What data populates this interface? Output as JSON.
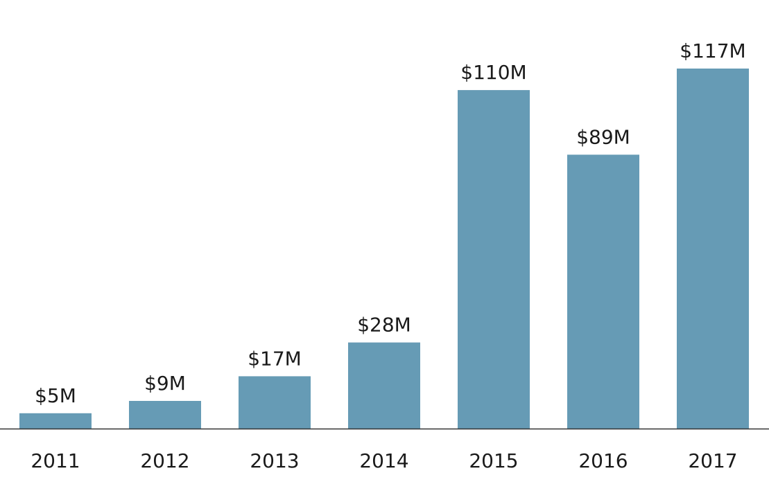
{
  "chart_data": {
    "type": "bar",
    "title": "",
    "xlabel": "",
    "ylabel": "",
    "categories": [
      "2011",
      "2012",
      "2013",
      "2014",
      "2015",
      "2016",
      "2017"
    ],
    "values": [
      5,
      9,
      17,
      28,
      110,
      89,
      117
    ],
    "value_labels": [
      "$5M",
      "$9M",
      "$17M",
      "$28M",
      "$110M",
      "$89M",
      "$117M"
    ],
    "ylim": [
      0,
      117
    ],
    "grid": false,
    "legend": "none",
    "colors": {
      "bar": "#669bb5",
      "axis": "#333333",
      "text": "#1a1a1a",
      "background": "#ffffff"
    }
  }
}
